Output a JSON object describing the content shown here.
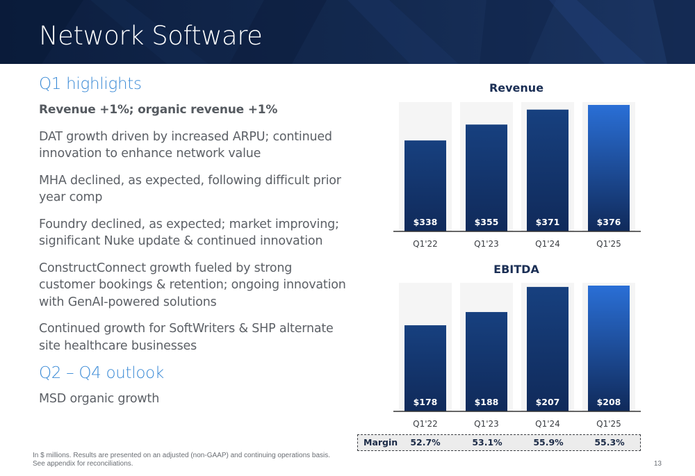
{
  "header": {
    "title": "Network Software"
  },
  "left": {
    "highlights_heading": "Q1 highlights",
    "highlights": [
      "Revenue +1%; organic revenue +1%",
      "DAT growth driven by increased ARPU; continued innovation to enhance network value",
      "MHA declined, as expected, following difficult prior year comp",
      "Foundry declined, as expected; market improving; significant Nuke update & continued innovation",
      "ConstructConnect growth fueled by strong customer bookings & retention; ongoing innovation with GenAI-powered solutions",
      "Continued growth for SoftWriters & SHP alternate site healthcare businesses"
    ],
    "outlook_heading": "Q2 – Q4 outlook",
    "outlook": [
      "MSD organic growth"
    ]
  },
  "footnote": {
    "line1": "In $ millions. Results are presented on an adjusted (non-GAAP) and continuing operations basis.",
    "line2": "See appendix for reconciliations."
  },
  "page_number": "13",
  "colors": {
    "bar_dark": "#102a5a",
    "bar_mid": "#17407f",
    "bar_bright": "#2a6fd6",
    "heading_blue": "#3a8ad6"
  },
  "chart_data": [
    {
      "type": "bar",
      "title": "Revenue",
      "categories": [
        "Q1'22",
        "Q1'23",
        "Q1'24",
        "Q1'25"
      ],
      "values": [
        338,
        355,
        371,
        376
      ],
      "value_labels": [
        "$338",
        "$355",
        "$371",
        "$376"
      ],
      "grid": false,
      "legend": "none"
    },
    {
      "type": "bar",
      "title": "EBITDA",
      "categories": [
        "Q1'22",
        "Q1'23",
        "Q1'24",
        "Q1'25"
      ],
      "values": [
        178,
        188,
        207,
        208
      ],
      "value_labels": [
        "$178",
        "$188",
        "$207",
        "$208"
      ],
      "grid": false,
      "legend": "none",
      "margin_label": "Margin",
      "margins": [
        "52.7%",
        "53.1%",
        "55.9%",
        "55.3%"
      ]
    }
  ]
}
